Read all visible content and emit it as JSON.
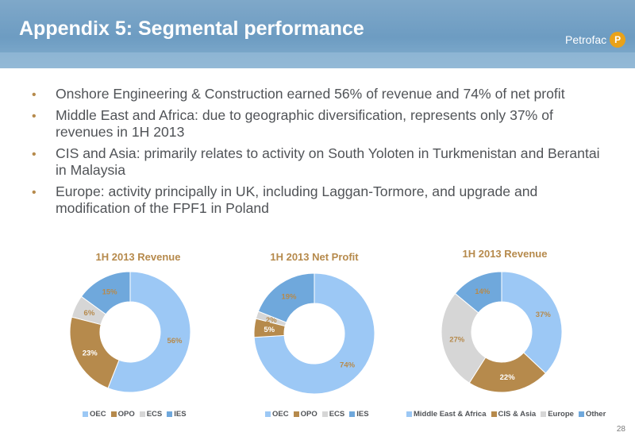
{
  "header": {
    "title": "Appendix 5: Segmental performance",
    "logo_text": "Petrofac",
    "logo_mark": "P"
  },
  "bullets": [
    "Onshore Engineering & Construction earned 56% of revenue and 74% of net profit",
    "Middle East and Africa: due to geographic diversification, represents only 37% of revenues in 1H 2013",
    "CIS and Asia: primarily relates to activity on South Yoloten in Turkmenistan and Berantai in Malaysia",
    "Europe: activity principally in UK, including Laggan-Tormore, and upgrade and modification of the FPF1 in Poland"
  ],
  "page_number": "28",
  "chart_data": [
    {
      "type": "pie",
      "title": "1H 2013 Revenue",
      "categories": [
        "OEC",
        "OPO",
        "ECS",
        "IES"
      ],
      "values": [
        56,
        23,
        6,
        15
      ],
      "labels": [
        "56%",
        "23%",
        "6%",
        "15%"
      ],
      "colors": [
        "#9cc8f5",
        "#b68a4c",
        "#d6d6d6",
        "#6fa8dc"
      ],
      "legend": "bottom"
    },
    {
      "type": "pie",
      "title": "1H 2013 Net Profit",
      "categories": [
        "OEC",
        "OPO",
        "ECS",
        "IES"
      ],
      "values": [
        74,
        5,
        2,
        19
      ],
      "labels": [
        "74%",
        "5%",
        "2%",
        "19%"
      ],
      "colors": [
        "#9cc8f5",
        "#b68a4c",
        "#d6d6d6",
        "#6fa8dc"
      ],
      "legend": "bottom"
    },
    {
      "type": "pie",
      "title": "1H 2013 Revenue",
      "categories": [
        "Middle East & Africa",
        "CIS & Asia",
        "Europe",
        "Other"
      ],
      "values": [
        37,
        22,
        27,
        14
      ],
      "labels": [
        "37%",
        "22%",
        "27%",
        "14%"
      ],
      "colors": [
        "#9cc8f5",
        "#b68a4c",
        "#d6d6d6",
        "#6fa8dc"
      ],
      "legend": "bottom"
    }
  ],
  "colors": {
    "accent": "#b68a4c",
    "header": "#6d9cc2",
    "text": "#505357"
  }
}
